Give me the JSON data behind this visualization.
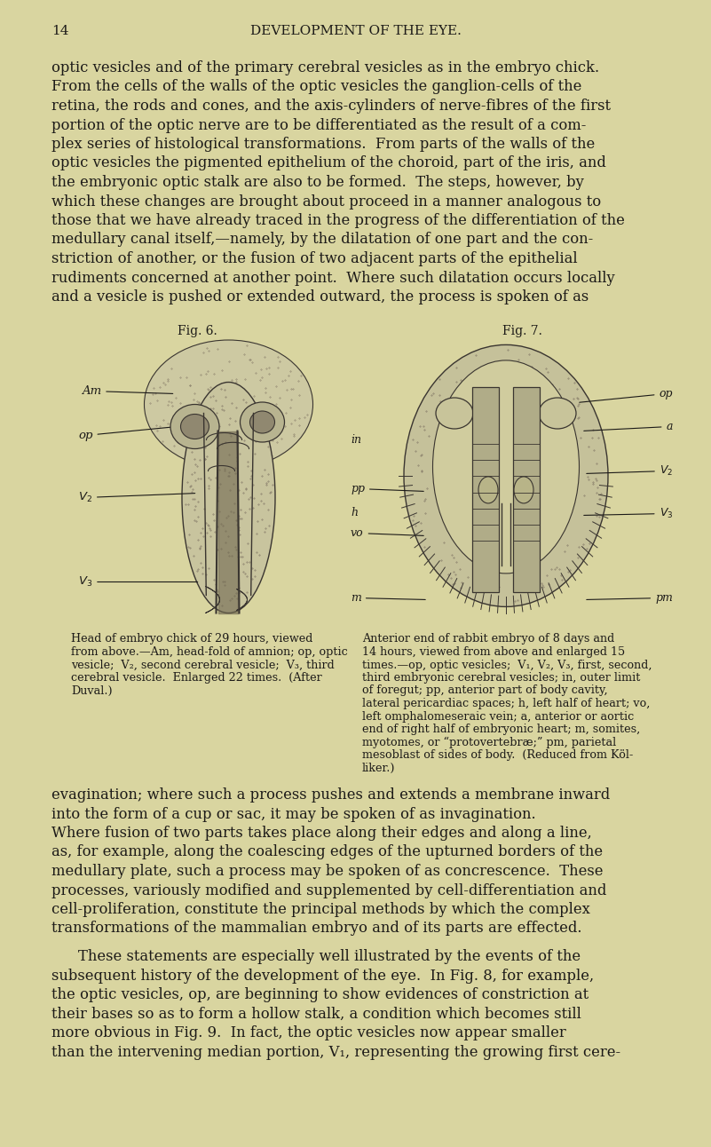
{
  "bg_color": "#d9d5a0",
  "page_number": "14",
  "header": "DEVELOPMENT OF THE EYE.",
  "text_color": "#1c1a18",
  "body_para1": "optic vesicles and of the primary cerebral vesicles as in the embryo chick. From the cells of the walls of the optic vesicles the ganglion-cells of the retina, the rods and cones, and the axis-cylinders of nerve-fibres of the first portion of the optic nerve are to be differentiated as the result of a com- plex series of histological transformations.  From parts of the walls of the optic vesicles the pigmented epithelium of the choroid, part of the iris, and the embryonic optic stalk are also to be formed.  The steps, however, by which these changes are brought about proceed in a manner analogous to those that we have already traced in the progress of the differentiation of the medullary canal itself,—namely, by the dilatation of one part and the con- striction of another, or the fusion of two adjacent parts of the epithelial rudiments concerned at another point.  Where such dilatation occurs locally and a vesicle is pushed or extended outward, the process is spoken of as",
  "fig6_label": "Fig. 6.",
  "fig7_label": "Fig. 7.",
  "fig6_caption_lines": [
    "Head of embryo chick of 29 hours, viewed",
    "from above.—Am, head-fold of amnion; op, optic",
    "vesicle;  V₂, second cerebral vesicle;  V₃, third",
    "cerebral vesicle.  Enlarged 22 times.  (After",
    "Duval.)"
  ],
  "fig7_caption_lines": [
    "Anterior end of rabbit embryo of 8 days and",
    "14 hours, viewed from above and enlarged 15",
    "times.—op, optic vesicles;  V₁, V₂, V₃, first, second,",
    "third embryonic cerebral vesicles; in, outer limit",
    "of foregut; pp, anterior part of body cavity,",
    "lateral pericardiac spaces; h, left half of heart; vo,",
    "left omphalomeseraic vein; a, anterior or aortic",
    "end of right half of embryonic heart; m, somites,",
    "myotomes, or “protovertebræ;” pm, parietal",
    "mesoblast of sides of body.  (Reduced from Köl-",
    "liker.)"
  ],
  "bottom_para1_lines": [
    "evagination; where such a process pushes and extends a membrane inward",
    "into the form of a cup or sac, it may be spoken of as invagination.",
    "Where fusion of two parts takes place along their edges and along a line,",
    "as, for example, along the coalescing edges of the upturned borders of the",
    "medullary plate, such a process may be spoken of as concrescence.  These",
    "processes, variously modified and supplemented by cell-differentiation and",
    "cell-proliferation, constitute the principal methods by which the complex",
    "transformations of the mammalian embryo and of its parts are effected."
  ],
  "bottom_para2_lines": [
    "These statements are especially well illustrated by the events of the",
    "subsequent history of the development of the eye.  In Fig. 8, for example,",
    "the optic vesicles, op, are beginning to show evidences of constriction at",
    "their bases so as to form a hollow stalk, a condition which becomes still",
    "more obvious in Fig. 9.  In fact, the optic vesicles now appear smaller",
    "than the intervening median portion, V₁, representing the growing first cere-"
  ],
  "dark_sketch": "#3a3530",
  "mid_sketch": "#7a7060",
  "light_sketch": "#b8b090",
  "pale_sketch": "#ccc8a8"
}
